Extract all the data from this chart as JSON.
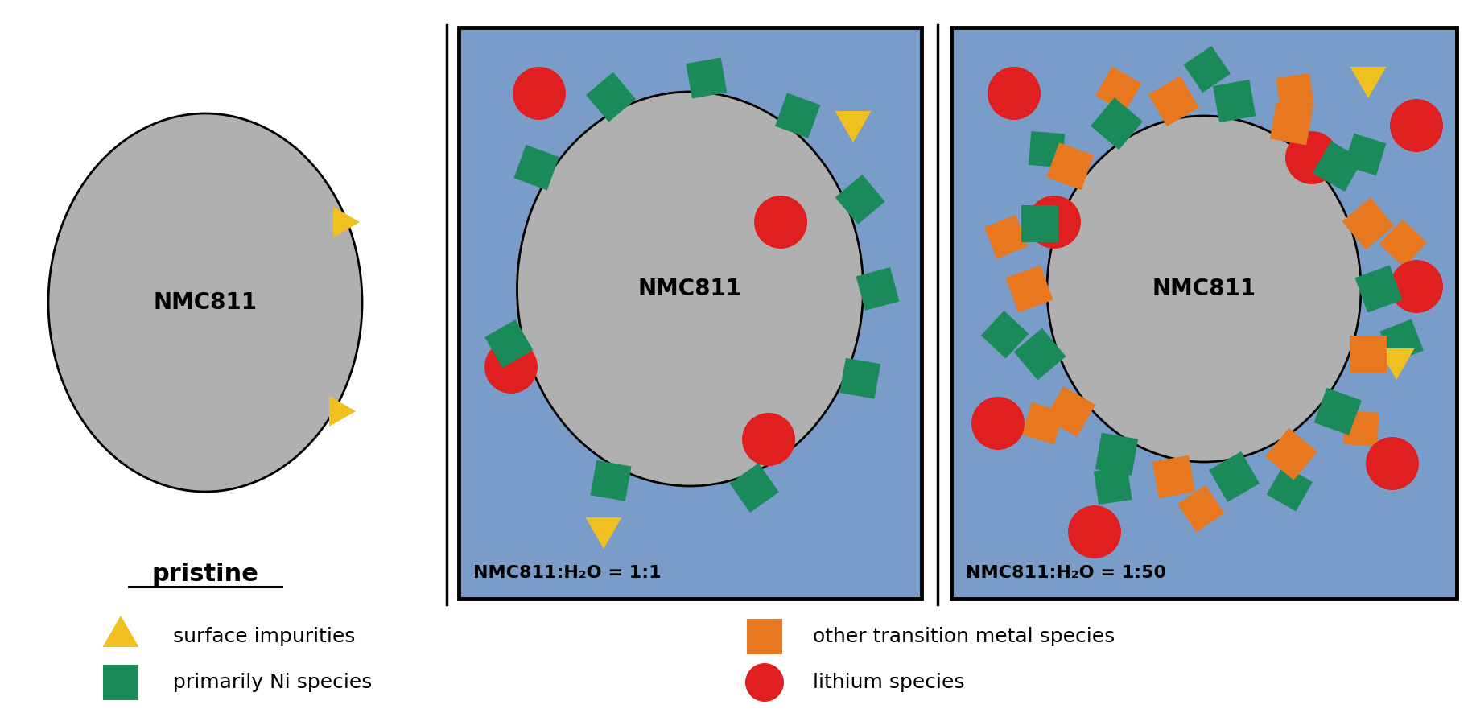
{
  "background_color": "#ffffff",
  "blue_bg": "#7a9cc8",
  "gray_circle": "#b0b0b0",
  "green_color": "#1a8a5a",
  "orange_color": "#e87820",
  "yellow_color": "#f0c020",
  "red_color": "#e02020",
  "pristine_label": "pristine",
  "panel1_label": "NMC811:H₂O = 1:1",
  "panel2_label": "NMC811:H₂O = 1:50",
  "nmc_label": "NMC811",
  "legend_items": [
    {
      "shape": "triangle",
      "color": "#f0c020",
      "label": "surface impurities"
    },
    {
      "shape": "square",
      "color": "#e87820",
      "label": "other transition metal species"
    },
    {
      "shape": "square",
      "color": "#1a8a5a",
      "label": "primarily Ni species"
    },
    {
      "shape": "circle",
      "color": "#e02020",
      "label": "lithium species"
    }
  ]
}
